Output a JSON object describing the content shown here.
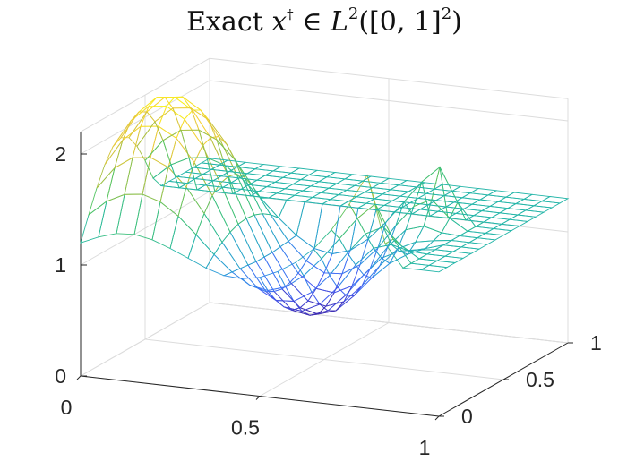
{
  "chart_data": {
    "type": "surface",
    "title": {
      "prefix": "Exact ",
      "var": "x",
      "dagger": "†",
      "in": " ∈ ",
      "space": "L",
      "space_exp": "2",
      "domain": "([0, 1]",
      "domain_exp": "2",
      "close": ")"
    },
    "xlabel": "",
    "ylabel": "",
    "zlabel": "",
    "xlim": [
      0,
      1
    ],
    "ylim": [
      0,
      1
    ],
    "zlim": [
      0,
      2.2
    ],
    "grid": true,
    "colormap": "parula",
    "colormap_stops": [
      "#3e26a8",
      "#4967fd",
      "#2c99de",
      "#25b9a3",
      "#4ec463",
      "#b8bf3c",
      "#f6cd3b",
      "#f9fb15"
    ],
    "x_ticks": [
      {
        "value": 0,
        "label": "0"
      },
      {
        "value": 0.5,
        "label": "0.5"
      },
      {
        "value": 1,
        "label": "1"
      }
    ],
    "y_ticks": [
      {
        "value": 0,
        "label": "0"
      },
      {
        "value": 0.5,
        "label": "0.5"
      },
      {
        "value": 1,
        "label": "1"
      }
    ],
    "z_ticks": [
      {
        "value": 0,
        "label": "0"
      },
      {
        "value": 1,
        "label": "1"
      },
      {
        "value": 2,
        "label": "2"
      }
    ],
    "x_grid": [
      0,
      0.05,
      0.1,
      0.15,
      0.2,
      0.25,
      0.3,
      0.35,
      0.4,
      0.45,
      0.5,
      0.55,
      0.6,
      0.65,
      0.7,
      0.75,
      0.8,
      0.85,
      0.9,
      0.95,
      1
    ],
    "y_grid": [
      0,
      0.0625,
      0.125,
      0.1875,
      0.25,
      0.3125,
      0.375,
      0.4375,
      0.5,
      0.5625,
      0.625,
      0.6875,
      0.75,
      0.8125,
      0.875,
      0.9375,
      1
    ],
    "z_values": [
      [
        1.2,
        1.27,
        1.32,
        1.33,
        1.3,
        1.24,
        1.17,
        1.1,
        1.05,
        1.04,
        1.07,
        1.14,
        1.24,
        1.38,
        1.57,
        1.82,
        2.1,
        1.5,
        1.3,
        1.3,
        1.3
      ],
      [
        1.41,
        1.55,
        1.63,
        1.65,
        1.6,
        1.49,
        1.34,
        1.18,
        1.04,
        0.94,
        0.91,
        0.96,
        1.08,
        1.25,
        1.45,
        1.65,
        1.8,
        1.5,
        1.3,
        1.3,
        1.3
      ],
      [
        1.61,
        1.81,
        1.92,
        1.94,
        1.87,
        1.71,
        1.49,
        1.25,
        1.03,
        0.87,
        0.78,
        0.79,
        0.89,
        1.06,
        1.28,
        1.47,
        1.55,
        1.4,
        1.3,
        1.3,
        1.3
      ],
      [
        1.78,
        2.02,
        2.16,
        2.18,
        2.09,
        1.89,
        1.61,
        1.3,
        1.02,
        0.8,
        0.68,
        0.66,
        0.74,
        0.91,
        1.13,
        1.3,
        1.35,
        1.31,
        1.3,
        1.3,
        1.3
      ],
      [
        1.9,
        2.15,
        2.3,
        2.32,
        2.22,
        2.0,
        1.68,
        1.33,
        1.01,
        0.76,
        0.61,
        0.58,
        0.64,
        0.8,
        1.0,
        1.17,
        1.25,
        1.28,
        1.3,
        1.3,
        1.3
      ],
      [
        1.94,
        2.19,
        2.34,
        2.36,
        2.26,
        2.03,
        1.7,
        1.34,
        1.01,
        0.74,
        0.59,
        0.55,
        0.6,
        0.75,
        0.93,
        1.08,
        1.18,
        1.25,
        1.3,
        1.3,
        1.3
      ],
      [
        1.9,
        2.15,
        2.3,
        2.32,
        2.22,
        2.0,
        1.68,
        1.33,
        1.01,
        0.76,
        0.61,
        0.58,
        0.64,
        0.8,
        1.0,
        1.17,
        1.25,
        1.28,
        1.3,
        1.3,
        1.3
      ],
      [
        1.78,
        2.02,
        2.16,
        2.18,
        2.09,
        1.89,
        1.61,
        1.3,
        1.02,
        0.8,
        0.68,
        0.66,
        0.74,
        0.91,
        1.13,
        1.3,
        1.35,
        1.31,
        1.3,
        1.3,
        1.3
      ],
      [
        1.61,
        1.81,
        1.92,
        1.94,
        1.87,
        1.71,
        1.49,
        1.25,
        1.03,
        0.87,
        0.78,
        0.79,
        0.89,
        1.06,
        1.28,
        1.47,
        1.55,
        1.4,
        1.3,
        1.3,
        1.3
      ],
      [
        1.41,
        1.55,
        1.63,
        1.65,
        1.6,
        1.49,
        1.34,
        1.18,
        1.04,
        0.94,
        0.91,
        0.96,
        1.08,
        1.25,
        1.45,
        1.65,
        1.8,
        1.5,
        1.3,
        1.3,
        1.3
      ],
      [
        1.3,
        1.3,
        1.3,
        1.3,
        1.3,
        1.3,
        1.3,
        1.3,
        1.3,
        1.3,
        1.3,
        1.3,
        1.3,
        1.3,
        1.3,
        1.3,
        1.3,
        1.3,
        1.3,
        1.3,
        1.3
      ],
      [
        1.3,
        1.3,
        1.3,
        1.3,
        1.3,
        1.3,
        1.3,
        1.3,
        1.3,
        1.3,
        1.3,
        1.3,
        1.3,
        1.3,
        1.3,
        1.3,
        1.3,
        1.3,
        1.3,
        1.3,
        1.3
      ],
      [
        1.3,
        1.3,
        1.3,
        1.3,
        1.3,
        1.3,
        1.3,
        1.3,
        1.3,
        1.3,
        1.3,
        1.3,
        1.3,
        1.3,
        1.3,
        1.3,
        1.3,
        1.3,
        1.3,
        1.3,
        1.3
      ],
      [
        1.3,
        1.3,
        1.3,
        1.3,
        1.3,
        1.3,
        1.3,
        1.3,
        1.3,
        1.3,
        1.3,
        1.3,
        1.3,
        1.3,
        1.3,
        1.3,
        1.3,
        1.3,
        1.3,
        1.3,
        1.3
      ],
      [
        1.3,
        1.3,
        1.3,
        1.3,
        1.3,
        1.3,
        1.3,
        1.3,
        1.3,
        1.3,
        1.3,
        1.3,
        1.3,
        1.3,
        1.3,
        1.3,
        1.3,
        1.3,
        1.3,
        1.3,
        1.3
      ],
      [
        1.3,
        1.3,
        1.3,
        1.3,
        1.3,
        1.3,
        1.3,
        1.3,
        1.3,
        1.3,
        1.3,
        1.3,
        1.3,
        1.3,
        1.3,
        1.3,
        1.3,
        1.3,
        1.3,
        1.3,
        1.3
      ],
      [
        1.3,
        1.3,
        1.3,
        1.3,
        1.3,
        1.3,
        1.3,
        1.3,
        1.3,
        1.3,
        1.3,
        1.3,
        1.3,
        1.3,
        1.3,
        1.3,
        1.3,
        1.3,
        1.3,
        1.3,
        1.3
      ]
    ]
  }
}
